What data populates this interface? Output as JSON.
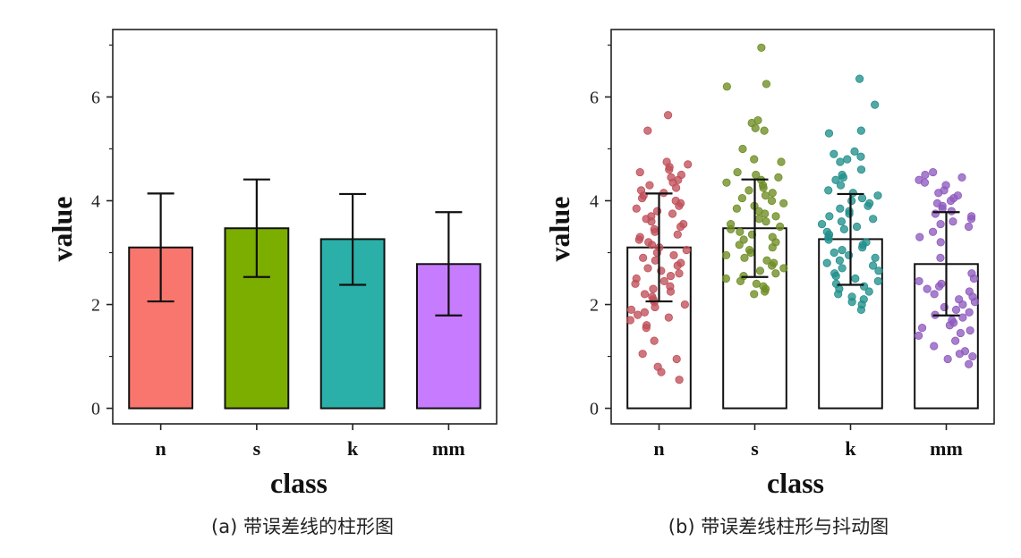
{
  "chart_data": [
    {
      "type": "bar",
      "panel": "a",
      "caption": "(a) 带误差线的柱形图",
      "xlabel": "class",
      "ylabel": "value",
      "categories": [
        "n",
        "s",
        "k",
        "mm"
      ],
      "values": [
        3.1,
        3.47,
        3.26,
        2.78
      ],
      "error_low": [
        2.06,
        2.53,
        2.38,
        1.79
      ],
      "error_high": [
        4.14,
        4.41,
        4.13,
        3.78
      ],
      "colors": [
        "#f8766d",
        "#7cae00",
        "#2ab0a8",
        "#c77cff"
      ],
      "ylim": [
        -0.3,
        7.3
      ],
      "yticks": [
        0,
        2,
        4,
        6
      ]
    },
    {
      "type": "bar",
      "panel": "b",
      "caption": "(b) 带误差线柱形与抖动图",
      "xlabel": "class",
      "ylabel": "value",
      "categories": [
        "n",
        "s",
        "k",
        "mm"
      ],
      "values": [
        3.1,
        3.47,
        3.26,
        2.78
      ],
      "error_low": [
        2.06,
        2.53,
        2.38,
        1.79
      ],
      "error_high": [
        4.14,
        4.41,
        4.13,
        3.78
      ],
      "point_colors": [
        "#c0505a",
        "#6e8d24",
        "#218f8c",
        "#8e5bbf"
      ],
      "ylim": [
        -0.3,
        7.3
      ],
      "yticks": [
        0,
        2,
        4,
        6
      ],
      "jitter_points": {
        "n": [
          5.65,
          5.35,
          4.75,
          4.7,
          4.65,
          4.6,
          4.55,
          4.5,
          4.45,
          4.4,
          4.35,
          4.3,
          4.25,
          4.2,
          4.15,
          4.1,
          4.05,
          4.0,
          3.95,
          3.9,
          3.85,
          3.8,
          3.75,
          3.7,
          3.65,
          3.6,
          3.55,
          3.5,
          3.45,
          3.4,
          3.35,
          3.3,
          3.25,
          3.2,
          3.15,
          3.1,
          3.05,
          3.0,
          2.95,
          2.9,
          2.85,
          2.8,
          2.75,
          2.7,
          2.65,
          2.6,
          2.55,
          2.5,
          2.45,
          2.4,
          2.35,
          2.3,
          2.25,
          2.2,
          2.15,
          2.1,
          2.05,
          2.0,
          1.95,
          1.9,
          1.85,
          1.8,
          1.75,
          1.7,
          1.6,
          1.55,
          1.3,
          1.05,
          0.95,
          0.8,
          0.7,
          0.55
        ],
        "s": [
          6.95,
          6.25,
          6.2,
          5.55,
          5.5,
          5.4,
          5.35,
          5.0,
          4.8,
          4.75,
          4.55,
          4.5,
          4.45,
          4.4,
          4.35,
          4.3,
          4.25,
          4.2,
          4.15,
          4.1,
          4.05,
          4.0,
          3.95,
          3.9,
          3.85,
          3.8,
          3.75,
          3.7,
          3.65,
          3.6,
          3.55,
          3.5,
          3.45,
          3.4,
          3.35,
          3.3,
          3.25,
          3.2,
          3.15,
          3.1,
          3.05,
          3.0,
          2.95,
          2.9,
          2.85,
          2.8,
          2.75,
          2.7,
          2.65,
          2.6,
          2.55,
          2.5,
          2.45,
          2.4,
          2.35,
          2.3,
          2.25,
          2.2
        ],
        "k": [
          6.35,
          5.85,
          5.35,
          5.3,
          4.95,
          4.9,
          4.85,
          4.8,
          4.75,
          4.6,
          4.5,
          4.45,
          4.4,
          4.3,
          4.2,
          4.15,
          4.1,
          4.05,
          4.0,
          3.95,
          3.9,
          3.85,
          3.8,
          3.75,
          3.7,
          3.65,
          3.6,
          3.55,
          3.5,
          3.45,
          3.4,
          3.35,
          3.3,
          3.25,
          3.2,
          3.15,
          3.1,
          3.05,
          3.0,
          2.95,
          2.9,
          2.85,
          2.8,
          2.75,
          2.7,
          2.65,
          2.6,
          2.55,
          2.5,
          2.45,
          2.4,
          2.35,
          2.3,
          2.25,
          2.2,
          2.15,
          2.1,
          2.05,
          2.0,
          1.9
        ],
        "mm": [
          4.55,
          4.5,
          4.45,
          4.4,
          4.35,
          4.3,
          4.2,
          4.15,
          4.1,
          4.05,
          4.0,
          3.95,
          3.9,
          3.85,
          3.8,
          3.75,
          3.7,
          3.65,
          3.6,
          3.55,
          3.5,
          3.4,
          3.3,
          3.2,
          2.9,
          2.6,
          2.5,
          2.45,
          2.4,
          2.35,
          2.3,
          2.25,
          2.2,
          2.15,
          2.1,
          2.05,
          2.0,
          1.95,
          1.9,
          1.85,
          1.8,
          1.75,
          1.7,
          1.65,
          1.6,
          1.55,
          1.5,
          1.45,
          1.4,
          1.3,
          1.2,
          1.1,
          1.05,
          1.0,
          0.95,
          0.85
        ]
      }
    }
  ]
}
